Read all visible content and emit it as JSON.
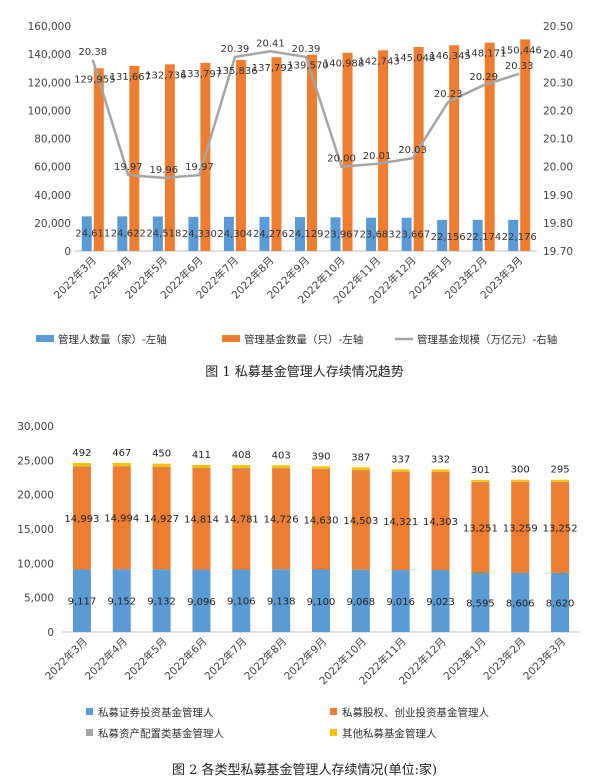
{
  "chart_data": [
    {
      "type": "bar",
      "title": "",
      "caption": "图 1  私募基金管理人存续情况趋势",
      "categories": [
        "2022年3月",
        "2022年4月",
        "2022年5月",
        "2022年6月",
        "2022年7月",
        "2022年8月",
        "2022年9月",
        "2022年10月",
        "2022年11月",
        "2022年12月",
        "2023年1月",
        "2023年2月",
        "2023年3月"
      ],
      "y_left": {
        "ylim": [
          0,
          160000
        ],
        "ticks": [
          "0",
          "20,000",
          "40,000",
          "60,000",
          "80,000",
          "100,000",
          "120,000",
          "140,000",
          "160,000"
        ]
      },
      "y_right": {
        "ylim": [
          19.7,
          20.5
        ],
        "ticks": [
          "19.70",
          "19.80",
          "19.90",
          "20.00",
          "20.10",
          "20.20",
          "20.30",
          "20.40",
          "20.50"
        ]
      },
      "series": [
        {
          "name": "管理人数量（家）-左轴",
          "kind": "bar",
          "axis": "left",
          "color": "#5b9bd5",
          "values": [
            24611,
            24622,
            24518,
            24330,
            24304,
            24276,
            24129,
            23967,
            23683,
            23667,
            22156,
            22174,
            22176
          ],
          "labels": [
            "24,611",
            "24,622",
            "24,518",
            "24,330",
            "24,304",
            "24,276",
            "24,129",
            "23,967",
            "23,683",
            "23,667",
            "22,156",
            "22,174",
            "22,176"
          ]
        },
        {
          "name": "管理基金数量（只）-左轴",
          "kind": "bar",
          "axis": "left",
          "color": "#ed7d31",
          "values": [
            129955,
            131667,
            132736,
            133797,
            135836,
            137792,
            139570,
            140988,
            142743,
            145048,
            146345,
            148171,
            150446
          ],
          "labels": [
            "129,955",
            "131,667",
            "132,736",
            "133,797",
            "135,836",
            "137,792",
            "139,570",
            "140,988",
            "142,743",
            "145,048",
            "146,345",
            "148,171",
            "150,446"
          ]
        },
        {
          "name": "管理基金规模（万亿元）-右轴",
          "kind": "line",
          "axis": "right",
          "color": "#a5a5a5",
          "values": [
            20.38,
            19.97,
            19.96,
            19.97,
            20.39,
            20.41,
            20.39,
            20.0,
            20.01,
            20.03,
            20.23,
            20.29,
            20.33
          ],
          "labels": [
            "20.38",
            "19.97",
            "19.96",
            "19.97",
            "20.39",
            "20.41",
            "20.39",
            "20.00",
            "20.01",
            "20.03",
            "20.23",
            "20.29",
            "20.33"
          ]
        }
      ],
      "legend": "bottom"
    },
    {
      "type": "bar",
      "stacked": true,
      "title": "",
      "caption": "图 2  各类型私募基金管理人存续情况(单位:家)",
      "categories": [
        "2022年3月",
        "2022年4月",
        "2022年5月",
        "2022年6月",
        "2022年7月",
        "2022年8月",
        "2022年9月",
        "2022年10月",
        "2022年11月",
        "2022年12月",
        "2023年1月",
        "2023年2月",
        "2023年3月"
      ],
      "ylim": [
        0,
        30000
      ],
      "ticks": [
        "0",
        "5,000",
        "10,000",
        "15,000",
        "20,000",
        "25,000",
        "30,000"
      ],
      "series": [
        {
          "name": "私募证券投资基金管理人",
          "color": "#5b9bd5",
          "values": [
            9117,
            9152,
            9132,
            9096,
            9106,
            9138,
            9100,
            9068,
            9016,
            9023,
            8595,
            8606,
            8620
          ],
          "labels": [
            "9,117",
            "9,152",
            "9,132",
            "9,096",
            "9,106",
            "9,138",
            "9,100",
            "9,068",
            "9,016",
            "9,023",
            "8,595",
            "8,606",
            "8,620"
          ]
        },
        {
          "name": "私募股权、创业投资基金管理人",
          "color": "#ed7d31",
          "values": [
            14993,
            14994,
            14927,
            14814,
            14781,
            14726,
            14630,
            14503,
            14321,
            14303,
            13251,
            13259,
            13252
          ],
          "labels": [
            "14,993",
            "14,994",
            "14,927",
            "14,814",
            "14,781",
            "14,726",
            "14,630",
            "14,503",
            "14,321",
            "14,303",
            "13,251",
            "13,259",
            "13,252"
          ]
        },
        {
          "name": "私募资产配置类基金管理人",
          "color": "#a5a5a5",
          "values": [
            9,
            9,
            9,
            9,
            9,
            9,
            9,
            9,
            9,
            9,
            9,
            9,
            9
          ],
          "labels": []
        },
        {
          "name": "其他私募基金管理人",
          "color": "#ffc000",
          "values": [
            492,
            467,
            450,
            411,
            408,
            403,
            390,
            387,
            337,
            332,
            301,
            300,
            295
          ],
          "labels": [
            "492",
            "467",
            "450",
            "411",
            "408",
            "403",
            "390",
            "387",
            "337",
            "332",
            "301",
            "300",
            "295"
          ]
        }
      ],
      "legend": "bottom"
    }
  ]
}
